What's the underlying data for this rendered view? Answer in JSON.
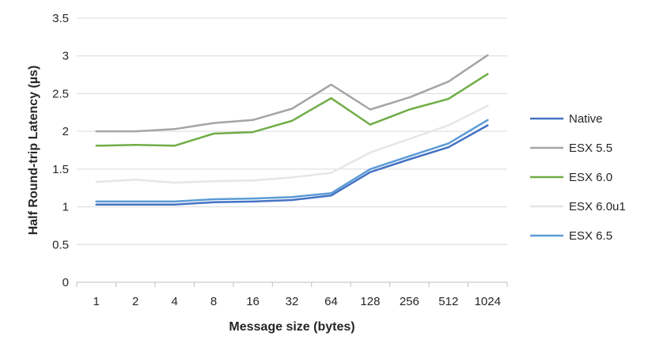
{
  "chart_data": {
    "type": "line",
    "title": "",
    "xlabel": "Message size (bytes)",
    "ylabel": "Half Round-trip Latency (µs)",
    "categories": [
      "1",
      "2",
      "4",
      "8",
      "16",
      "32",
      "64",
      "128",
      "256",
      "512",
      "1024"
    ],
    "ylim": [
      0,
      3.5
    ],
    "yticks": [
      "0",
      "0.5",
      "1",
      "1.5",
      "2",
      "2.5",
      "3",
      "3.5"
    ],
    "grid": true,
    "legend_position": "right",
    "series": [
      {
        "name": "Native",
        "color": "#4472c4",
        "values": [
          1.03,
          1.03,
          1.03,
          1.06,
          1.07,
          1.09,
          1.15,
          1.46,
          1.63,
          1.79,
          2.08
        ]
      },
      {
        "name": "ESX 5.5",
        "color": "#a5a5a5",
        "values": [
          2.0,
          2.0,
          2.03,
          2.11,
          2.15,
          2.3,
          2.62,
          2.29,
          2.45,
          2.66,
          3.01
        ]
      },
      {
        "name": "ESX 6.0",
        "color": "#70ad47",
        "values": [
          1.81,
          1.82,
          1.81,
          1.97,
          1.99,
          2.14,
          2.44,
          2.09,
          2.29,
          2.43,
          2.76
        ]
      },
      {
        "name": "ESX 6.0u1",
        "color": "#e7e6e6",
        "values": [
          1.33,
          1.36,
          1.32,
          1.34,
          1.35,
          1.39,
          1.45,
          1.72,
          1.9,
          2.08,
          2.34
        ]
      },
      {
        "name": "ESX 6.5",
        "color": "#5b9bd5",
        "values": [
          1.07,
          1.07,
          1.07,
          1.1,
          1.11,
          1.13,
          1.18,
          1.5,
          1.67,
          1.84,
          2.15
        ]
      }
    ]
  }
}
